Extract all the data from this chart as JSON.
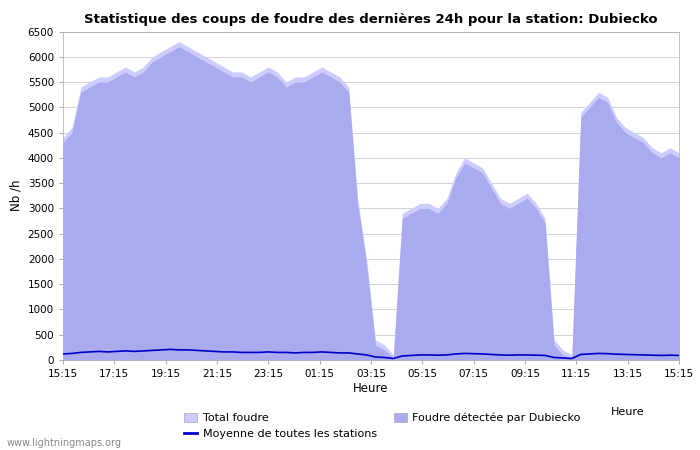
{
  "title": "Statistique des coups de foudre des dernières 24h pour la station: Dubiecko",
  "xlabel": "Heure",
  "ylabel": "Nb /h",
  "ylim": [
    0,
    6500
  ],
  "background_color": "#ffffff",
  "watermark": "www.lightningmaps.org",
  "x_labels": [
    "15:15",
    "17:15",
    "19:15",
    "21:15",
    "23:15",
    "01:15",
    "03:15",
    "05:15",
    "07:15",
    "09:15",
    "11:15",
    "13:15",
    "15:15"
  ],
  "total_foudre_color": "#ccccff",
  "dubiecko_color": "#aaaaee",
  "moyenne_color": "#0000cc",
  "legend_total": "Total foudre",
  "legend_moyenne": "Moyenne de toutes les stations",
  "legend_dubiecko": "Foudre détectée par Dubiecko",
  "total_foudre": [
    4400,
    4600,
    5400,
    5500,
    5600,
    5600,
    5700,
    5800,
    5700,
    5800,
    6000,
    6100,
    6200,
    6300,
    6200,
    6100,
    6000,
    5900,
    5800,
    5700,
    5700,
    5600,
    5700,
    5800,
    5700,
    5500,
    5600,
    5600,
    5700,
    5800,
    5700,
    5600,
    5400,
    3200,
    2000,
    400,
    300,
    100,
    2900,
    3000,
    3100,
    3100,
    3000,
    3200,
    3700,
    4000,
    3900,
    3800,
    3500,
    3200,
    3100,
    3200,
    3300,
    3100,
    2800,
    400,
    200,
    100,
    4900,
    5100,
    5300,
    5200,
    4800,
    4600,
    4500,
    4400,
    4200,
    4100,
    4200,
    4100
  ],
  "dubiecko": [
    4300,
    4500,
    5300,
    5400,
    5500,
    5500,
    5600,
    5700,
    5600,
    5700,
    5900,
    6000,
    6100,
    6200,
    6100,
    6000,
    5900,
    5800,
    5700,
    5600,
    5600,
    5500,
    5600,
    5700,
    5600,
    5400,
    5500,
    5500,
    5600,
    5700,
    5600,
    5500,
    5300,
    3100,
    1900,
    300,
    200,
    50,
    2800,
    2900,
    3000,
    3000,
    2900,
    3100,
    3600,
    3900,
    3800,
    3700,
    3400,
    3100,
    3000,
    3100,
    3200,
    3000,
    2700,
    300,
    100,
    50,
    4800,
    5000,
    5200,
    5100,
    4700,
    4500,
    4400,
    4300,
    4100,
    4000,
    4100,
    4000
  ],
  "moyenne": [
    120,
    130,
    150,
    160,
    170,
    160,
    170,
    180,
    170,
    180,
    190,
    200,
    210,
    200,
    200,
    190,
    180,
    170,
    160,
    160,
    150,
    150,
    150,
    160,
    150,
    150,
    140,
    150,
    150,
    160,
    150,
    140,
    140,
    120,
    100,
    60,
    50,
    30,
    80,
    90,
    100,
    100,
    95,
    100,
    120,
    130,
    125,
    120,
    110,
    100,
    95,
    100,
    100,
    95,
    90,
    50,
    40,
    30,
    110,
    120,
    130,
    125,
    115,
    110,
    105,
    100,
    95,
    90,
    95,
    90
  ]
}
